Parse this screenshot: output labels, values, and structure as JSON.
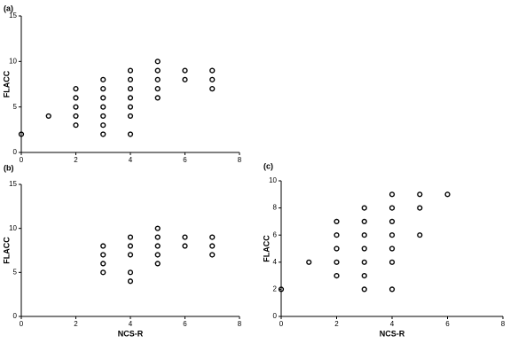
{
  "chart_data": [
    {
      "type": "scatter",
      "title": "(a)",
      "ylabel": "FLACC",
      "x": [
        0,
        1,
        2,
        2,
        2,
        2,
        2,
        3,
        3,
        3,
        3,
        3,
        3,
        3,
        4,
        4,
        4,
        4,
        4,
        4,
        4,
        5,
        5,
        5,
        5,
        5,
        6,
        6,
        7,
        7,
        7
      ],
      "values": [
        2,
        4,
        3,
        4,
        5,
        6,
        7,
        2,
        3,
        4,
        5,
        6,
        7,
        8,
        2,
        4,
        5,
        6,
        7,
        8,
        9,
        6,
        7,
        8,
        9,
        10,
        8,
        9,
        7,
        8,
        9
      ],
      "xlim": [
        0,
        8
      ],
      "xticks": [
        0,
        2,
        4,
        6,
        8
      ],
      "ylim": [
        0,
        15
      ],
      "yticks": [
        0,
        5,
        10,
        15
      ],
      "color": "#000000"
    },
    {
      "type": "scatter",
      "title": "(b)",
      "xlabel": "NCS-R",
      "ylabel": "FLACC",
      "x": [
        3,
        3,
        3,
        3,
        4,
        4,
        4,
        4,
        4,
        5,
        5,
        5,
        5,
        5,
        6,
        6,
        7,
        7,
        7
      ],
      "values": [
        5,
        6,
        7,
        8,
        4,
        5,
        7,
        8,
        9,
        6,
        7,
        8,
        9,
        10,
        8,
        9,
        7,
        8,
        9
      ],
      "xlim": [
        0,
        8
      ],
      "xticks": [
        0,
        2,
        4,
        6,
        8
      ],
      "ylim": [
        0,
        15
      ],
      "yticks": [
        0,
        5,
        10,
        15
      ],
      "color": "#000000"
    },
    {
      "type": "scatter",
      "title": "(c)",
      "xlabel": "NCS-R",
      "ylabel": "FLACC",
      "x": [
        0,
        1,
        2,
        2,
        2,
        2,
        2,
        3,
        3,
        3,
        3,
        3,
        3,
        3,
        4,
        4,
        4,
        4,
        4,
        4,
        4,
        5,
        5,
        5,
        6
      ],
      "values": [
        2,
        4,
        3,
        4,
        5,
        6,
        7,
        2,
        3,
        4,
        5,
        6,
        7,
        8,
        2,
        4,
        5,
        6,
        7,
        8,
        9,
        6,
        8,
        9,
        9
      ],
      "xlim": [
        0,
        8
      ],
      "xticks": [
        0,
        2,
        4,
        6,
        8
      ],
      "ylim": [
        0,
        10
      ],
      "yticks": [
        0,
        2,
        4,
        6,
        8,
        10
      ],
      "color": "#000000"
    }
  ]
}
